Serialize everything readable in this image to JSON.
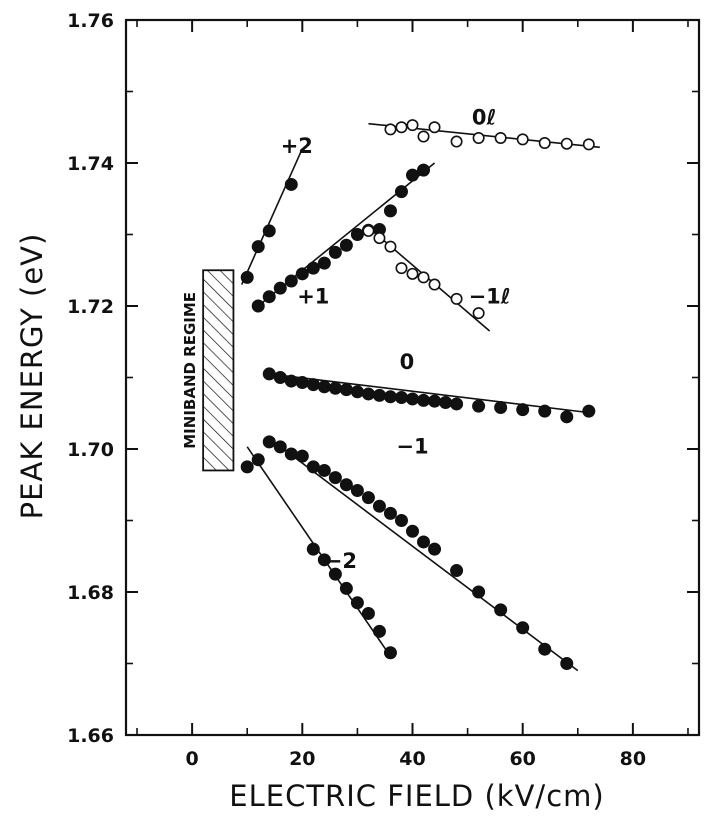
{
  "chart_data": {
    "type": "scatter",
    "title": "",
    "xlabel": "ELECTRIC FIELD (kV/cm)",
    "ylabel": "PEAK ENERGY (eV)",
    "xlim": [
      -12,
      92
    ],
    "ylim": [
      1.66,
      1.76
    ],
    "xticks": [
      0,
      20,
      40,
      60,
      80
    ],
    "yticks": [
      1.66,
      1.68,
      1.7,
      1.72,
      1.74,
      1.76
    ],
    "xtick_labels": [
      "0",
      "20",
      "40",
      "60",
      "80"
    ],
    "ytick_labels": [
      "1.66",
      "1.68",
      "1.70",
      "1.72",
      "1.74",
      "1.76"
    ],
    "grid": false,
    "annotations": {
      "miniband_regime": {
        "label": "MINIBAND REGIME",
        "x_range": [
          2,
          7.5
        ],
        "y_range": [
          1.697,
          1.725
        ]
      }
    },
    "series": [
      {
        "name": "+2",
        "marker": "filled",
        "label_x": 19,
        "label_y": 1.7425,
        "x": [
          10,
          12,
          14,
          18
        ],
        "y": [
          1.724,
          1.7283,
          1.7305,
          1.737
        ],
        "fit": [
          [
            9,
            1.723
          ],
          [
            20,
            1.742
          ]
        ]
      },
      {
        "name": "+1",
        "marker": "filled",
        "label_x": 22,
        "label_y": 1.7215,
        "x": [
          12,
          14,
          16,
          18,
          20,
          22,
          24,
          26,
          28,
          30,
          32,
          34,
          36,
          38,
          40,
          42
        ],
        "y": [
          1.72,
          1.7213,
          1.7225,
          1.7235,
          1.7245,
          1.7253,
          1.726,
          1.7275,
          1.7285,
          1.73,
          1.7306,
          1.7307,
          1.7333,
          1.736,
          1.7383,
          1.739
        ],
        "fit": [
          [
            12,
            1.72
          ],
          [
            44,
            1.74
          ]
        ]
      },
      {
        "name": "0ℓ",
        "marker": "open",
        "label_x": 53,
        "label_y": 1.7465,
        "x": [
          36,
          38,
          40,
          42,
          44,
          48,
          52,
          56,
          60,
          64,
          68,
          72
        ],
        "y": [
          1.7447,
          1.745,
          1.7453,
          1.7437,
          1.745,
          1.743,
          1.7435,
          1.7435,
          1.7433,
          1.7428,
          1.7427,
          1.7426
        ],
        "fit": [
          [
            32,
            1.7455
          ],
          [
            74,
            1.7422
          ]
        ]
      },
      {
        "name": "−1ℓ",
        "marker": "open",
        "label_x": 54,
        "label_y": 1.7215,
        "x": [
          32,
          34,
          36,
          38,
          40,
          42,
          44,
          48,
          52
        ],
        "y": [
          1.7305,
          1.7295,
          1.7283,
          1.7253,
          1.7245,
          1.724,
          1.723,
          1.721,
          1.719
        ],
        "fit": [
          [
            32,
            1.731
          ],
          [
            54,
            1.7165
          ]
        ]
      },
      {
        "name": "0",
        "marker": "filled",
        "label_x": 39,
        "label_y": 1.7123,
        "x": [
          14,
          16,
          18,
          20,
          22,
          24,
          26,
          28,
          30,
          32,
          34,
          36,
          38,
          40,
          42,
          44,
          46,
          48,
          52,
          56,
          60,
          64,
          68,
          72
        ],
        "y": [
          1.7105,
          1.71,
          1.7095,
          1.7093,
          1.709,
          1.7087,
          1.7085,
          1.7083,
          1.708,
          1.7077,
          1.7075,
          1.7073,
          1.7072,
          1.707,
          1.7068,
          1.7067,
          1.7065,
          1.7063,
          1.706,
          1.7058,
          1.7055,
          1.7053,
          1.7045,
          1.7053
        ],
        "fit": [
          [
            14,
            1.7105
          ],
          [
            73,
            1.705
          ]
        ]
      },
      {
        "name": "−1",
        "marker": "filled",
        "label_x": 40,
        "label_y": 1.7005,
        "x": [
          14,
          16,
          18,
          20,
          22,
          24,
          26,
          28,
          30,
          32,
          34,
          36,
          38,
          40,
          42,
          44,
          48,
          52,
          56,
          60,
          64,
          68
        ],
        "y": [
          1.701,
          1.7003,
          1.6993,
          1.699,
          1.6975,
          1.697,
          1.696,
          1.695,
          1.6942,
          1.6932,
          1.692,
          1.691,
          1.69,
          1.6885,
          1.687,
          1.686,
          1.683,
          1.68,
          1.6775,
          1.675,
          1.672,
          1.67
        ],
        "fit": [
          [
            14,
            1.7015
          ],
          [
            70,
            1.669
          ]
        ]
      },
      {
        "name": "−2",
        "marker": "filled",
        "label_x": 27,
        "label_y": 1.6845,
        "x": [
          10,
          12,
          22,
          24,
          26,
          28,
          30,
          32,
          34,
          36
        ],
        "y": [
          1.6975,
          1.6985,
          1.686,
          1.6845,
          1.6825,
          1.6805,
          1.6785,
          1.677,
          1.6745,
          1.6715
        ],
        "fit": [
          [
            10,
            1.7003
          ],
          [
            36,
            1.671
          ]
        ]
      }
    ]
  }
}
